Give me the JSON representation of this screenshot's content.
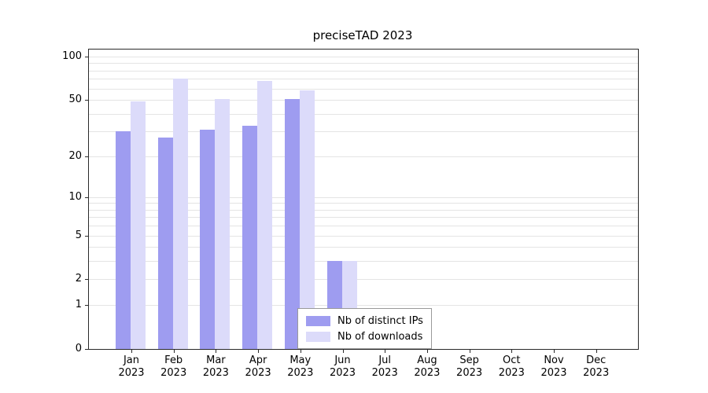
{
  "chart_data": {
    "type": "bar",
    "title": "preciseTAD 2023",
    "categories": [
      "Jan",
      "Feb",
      "Mar",
      "Apr",
      "May",
      "Jun",
      "Jul",
      "Aug",
      "Sep",
      "Oct",
      "Nov",
      "Dec"
    ],
    "x_year_label": "2023",
    "series": [
      {
        "name": "Nb of distinct IPs",
        "color": "#9e9cf0",
        "values": [
          30,
          27,
          31,
          33,
          51,
          3,
          0,
          0,
          0,
          0,
          0,
          0
        ]
      },
      {
        "name": "Nb of downloads",
        "color": "#dcdbfa",
        "values": [
          49,
          70,
          51,
          68,
          58,
          3,
          0,
          0,
          0,
          0,
          0,
          0
        ]
      }
    ],
    "y_ticks": [
      0,
      1,
      2,
      5,
      10,
      20,
      50,
      100
    ],
    "y_minor_gridlines": [
      3,
      4,
      6,
      7,
      8,
      9,
      30,
      40,
      60,
      70,
      80,
      90
    ],
    "y_scale": "log(1+x)",
    "ylim": [
      0,
      110
    ],
    "xlabel": "",
    "ylabel": "",
    "grid": true,
    "legend_position": "lower center inside"
  },
  "colors": {
    "background": "#ffffff",
    "axis": "#2a2a2a",
    "gridline": "#e4e4e4",
    "legend_border": "#9a9a9a",
    "series_dark": "#9e9cf0",
    "series_light": "#dcdbfa"
  }
}
